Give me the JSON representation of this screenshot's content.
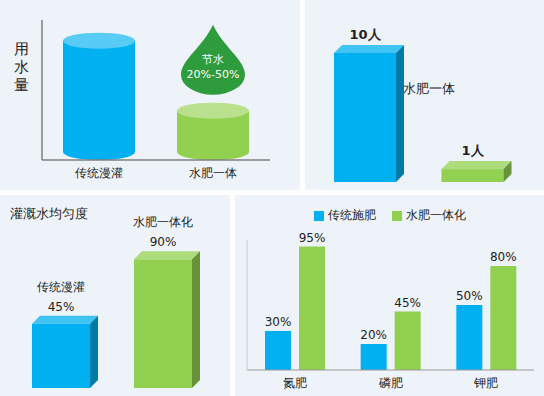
{
  "chart_data": [
    {
      "type": "bar",
      "y_label": "用水量",
      "categories": [
        "传统漫灌",
        "水肥一体"
      ],
      "values": [
        100,
        45
      ],
      "colors": [
        "#00b0f0",
        "#92d050"
      ],
      "ylim": [
        0,
        110
      ],
      "tick_labels": "x",
      "annotation": {
        "category": "水肥一体",
        "text": [
          "节水",
          "20%-50%"
        ]
      }
    },
    {
      "type": "bar",
      "categories": [
        null,
        null
      ],
      "values": [
        10,
        1
      ],
      "value_labels": [
        "10人",
        "1人"
      ],
      "colors": [
        "#00b0f0",
        "#92d050"
      ],
      "ylim": [
        0,
        11
      ],
      "tick_labels": false,
      "data_labels": true,
      "annotation": "水肥一体"
    },
    {
      "type": "bar",
      "title": "灌溉水均匀度",
      "categories": [
        "传统漫灌",
        "水肥一体化"
      ],
      "values": [
        45,
        90
      ],
      "value_labels": [
        "45%",
        "90%"
      ],
      "colors": [
        "#00b0f0",
        "#92d050"
      ],
      "ylim": [
        0,
        100
      ],
      "tick_labels": false,
      "data_labels": true
    },
    {
      "type": "bar",
      "categories": [
        "氮肥",
        "磷肥",
        "钾肥"
      ],
      "series": [
        {
          "name": "传统施肥",
          "color": "#00b0f0",
          "values": [
            30,
            20,
            50
          ],
          "value_labels": [
            "30%",
            "20%",
            "50%"
          ]
        },
        {
          "name": "水肥一体化",
          "color": "#92d050",
          "values": [
            95,
            45,
            80
          ],
          "value_labels": [
            "95%",
            "45%",
            "80%"
          ]
        }
      ],
      "ylim": [
        0,
        100
      ],
      "tick_labels": "x",
      "data_labels": true,
      "legend": "top"
    }
  ]
}
